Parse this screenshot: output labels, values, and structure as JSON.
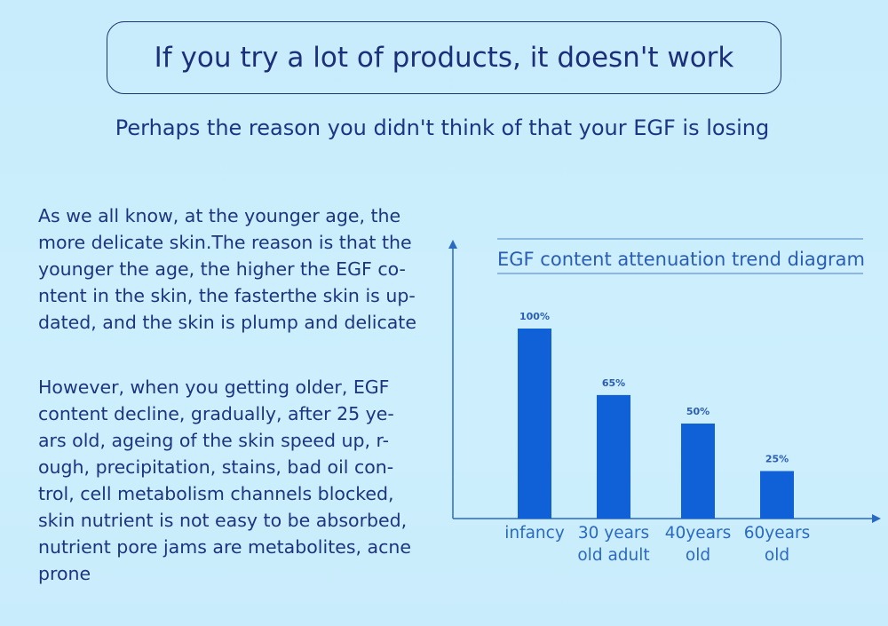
{
  "header": {
    "title": "If you try a lot of products, it doesn't work",
    "subtitle": "Perhaps the reason you didn't think of that your EGF is losing"
  },
  "paragraphs": [
    {
      "lines": [
        "As we all know, at the younger age, the",
        "more delicate skin.The reason is that the",
        "younger the age, the higher the EGF co-",
        "ntent in the skin, the fasterthe skin is up-",
        "dated, and the skin is plump and delicate"
      ]
    },
    {
      "lines": [
        "However, when you getting older, EGF",
        "content decline, gradually, after 25 ye-",
        "ars old, ageing of the skin speed up, r-",
        "ough, precipitation, stains, bad oil con-",
        "trol, cell metabolism channels blocked,",
        "skin nutrient is not easy to be absorbed,",
        "nutrient pore jams are metabolites, acne",
        "prone"
      ]
    }
  ],
  "chart_data": {
    "type": "bar",
    "title": "EGF content attenuation trend diagram",
    "categories": [
      "infancy",
      "30 years old adult",
      "40years old",
      "60years old"
    ],
    "values": [
      100,
      65,
      50,
      25
    ],
    "value_labels": [
      "100%",
      "65%",
      "50%",
      "25%"
    ],
    "color": "#1060d8"
  }
}
